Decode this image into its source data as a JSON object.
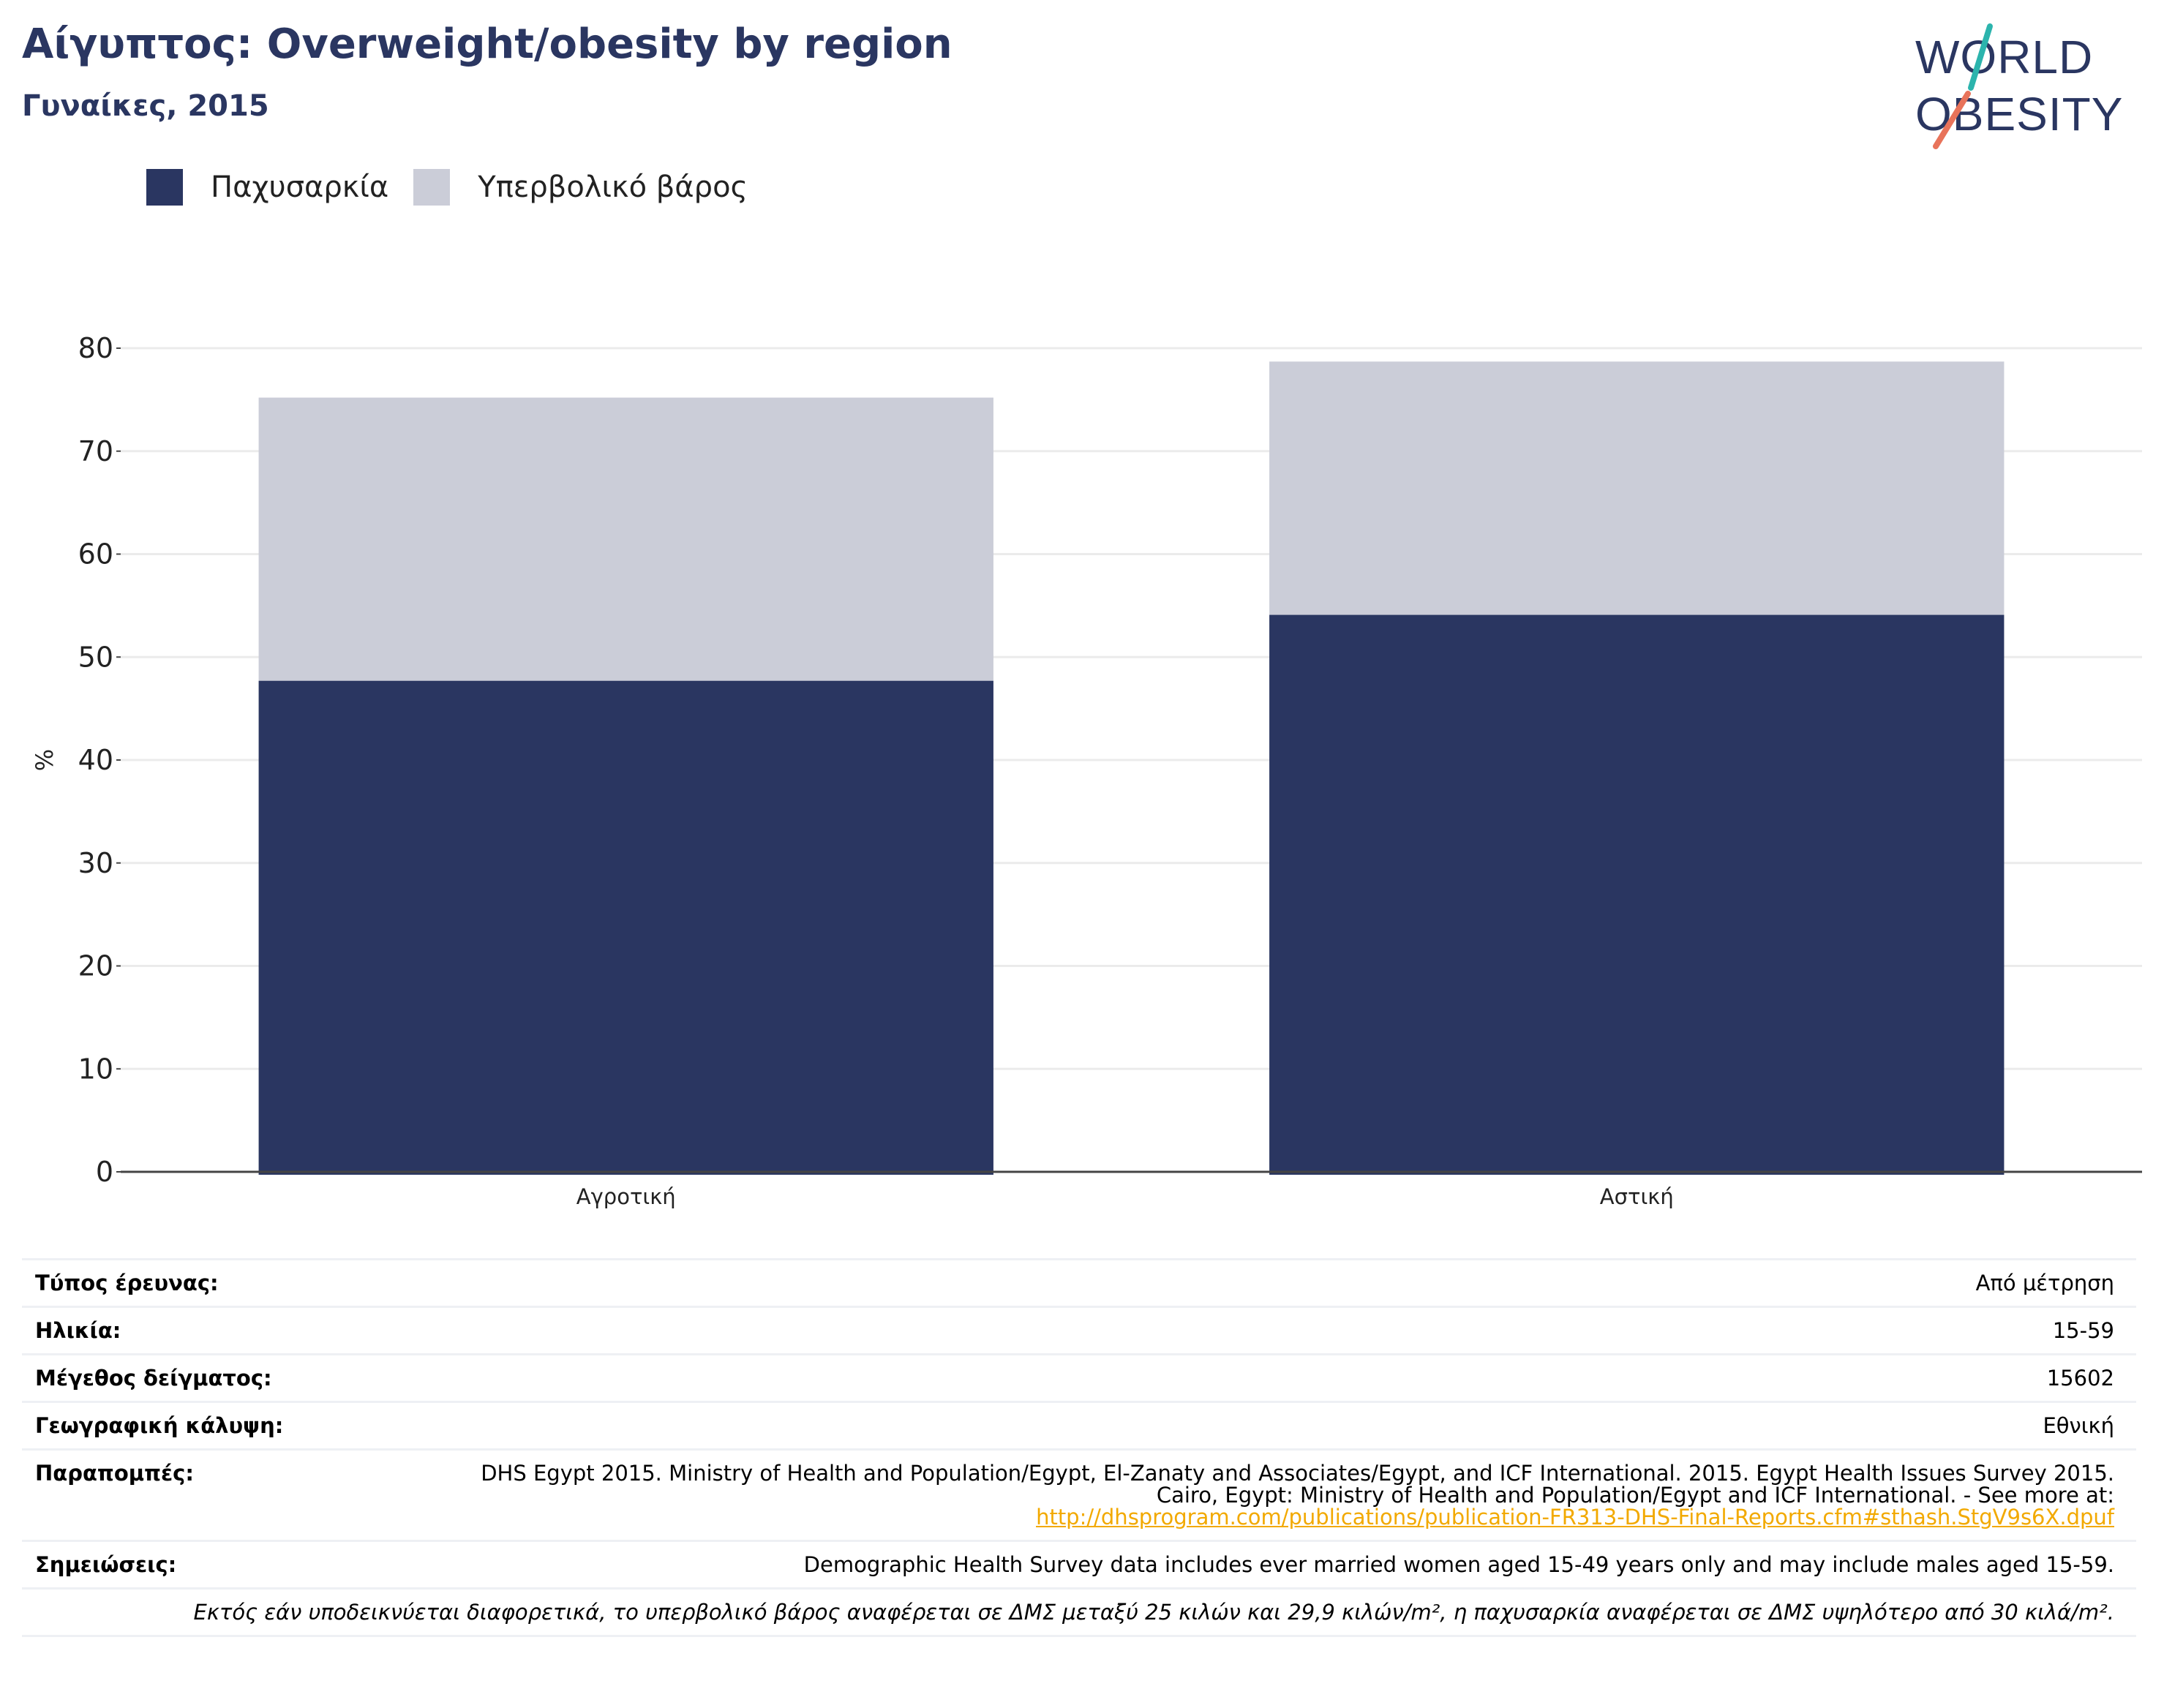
{
  "header": {
    "title": "Αίγυπτος: Overweight/obesity by region",
    "subtitle": "Γυναίκες, 2015"
  },
  "logo": {
    "line1": "WORLD",
    "line2": "OBESITY"
  },
  "colors": {
    "obesity": "#2a3661",
    "overweight": "#cbcdd8",
    "title": "#2a3661",
    "link": "#f2a900"
  },
  "chart_data": {
    "type": "bar",
    "stacked": true,
    "categories": [
      "Αγροτική",
      "Αστική"
    ],
    "series": [
      {
        "name": "Παχυσαρκία",
        "values": [
          47.7,
          54.1
        ]
      },
      {
        "name": "Υπερβολικό βάρος",
        "values": [
          27.5,
          24.6
        ]
      }
    ],
    "ylabel": "%",
    "ylim": [
      0,
      80
    ],
    "yticks": [
      0,
      10,
      20,
      30,
      40,
      50,
      60,
      70,
      80
    ],
    "grid": true,
    "legend": "top-left"
  },
  "info": {
    "survey_type_label": "Τύπος έρευνας:",
    "survey_type_value": "Από μέτρηση",
    "age_label": "Ηλικία:",
    "age_value": "15-59",
    "sample_label": "Μέγεθος δείγματος:",
    "sample_value": "15602",
    "coverage_label": "Γεωγραφική κάλυψη:",
    "coverage_value": "Εθνική",
    "references_label": "Παραπομπές:",
    "references_text": "DHS Egypt 2015. Ministry of Health and Population/Egypt, El-Zanaty and Associates/Egypt, and ICF International. 2015. Egypt Health Issues Survey 2015. Cairo, Egypt: Ministry of Health and Population/Egypt and ICF International. - See more at:",
    "references_link": "http://dhsprogram.com/publications/publication-FR313-DHS-Final-Reports.cfm#sthash.StgV9s6X.dpuf",
    "notes_label": "Σημειώσεις:",
    "notes_value": "Demographic Health Survey data includes ever married women aged 15-49 years only and may include males aged 15-59.",
    "footnote": "Εκτός εάν υποδεικνύεται διαφορετικά, το υπερβολικό βάρος αναφέρεται σε ΔΜΣ μεταξύ 25 κιλών και 29,9 κιλών/m², η παχυσαρκία αναφέρεται σε ΔΜΣ υψηλότερο από 30 κιλά/m²."
  }
}
